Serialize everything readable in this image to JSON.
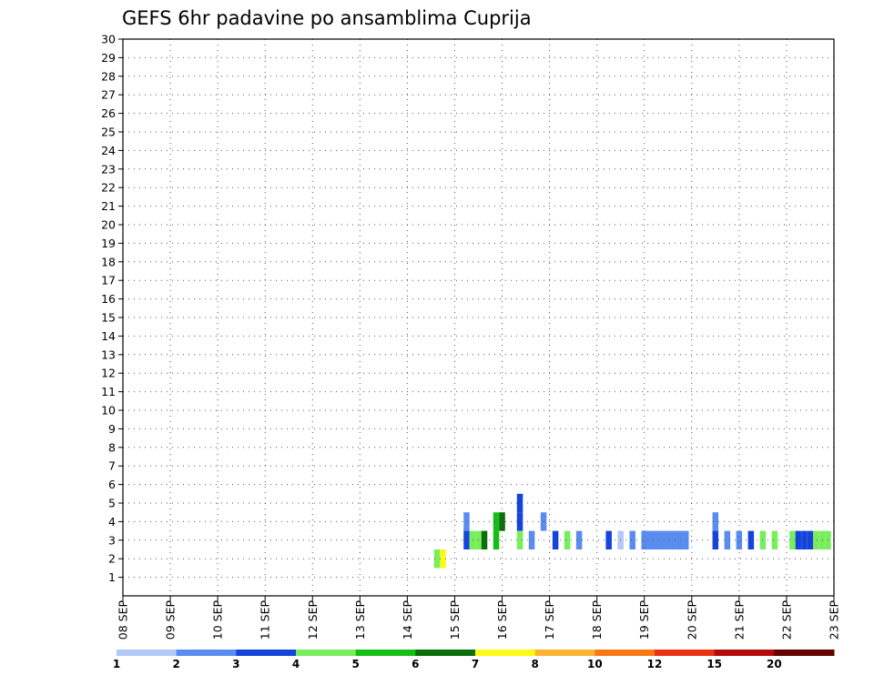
{
  "chart_data": {
    "type": "heatmap",
    "title": "GEFS 6hr padavine po ansamblima Cuprija",
    "xlabel": "",
    "ylabel": "",
    "x_ticks": [
      "08 SEP",
      "09 SEP",
      "10 SEP",
      "11 SEP",
      "12 SEP",
      "13 SEP",
      "14 SEP",
      "15 SEP",
      "16 SEP",
      "17 SEP",
      "18 SEP",
      "19 SEP",
      "20 SEP",
      "21 SEP",
      "22 SEP",
      "23 SEP"
    ],
    "y_ticks": [
      "1",
      "2",
      "3",
      "4",
      "5",
      "6",
      "7",
      "8",
      "9",
      "10",
      "11",
      "12",
      "13",
      "14",
      "15",
      "16",
      "17",
      "18",
      "19",
      "20",
      "21",
      "22",
      "23",
      "24",
      "25",
      "26",
      "27",
      "28",
      "29",
      "30"
    ],
    "xlim": [
      0,
      120
    ],
    "ylim": [
      0,
      30
    ],
    "grid": true,
    "legend": "bottom",
    "colorbar": {
      "labels": [
        "1",
        "2",
        "3",
        "4",
        "5",
        "6",
        "7",
        "8",
        "10",
        "12",
        "15",
        "20"
      ],
      "colors": [
        "#b4c8f8",
        "#5a8cf0",
        "#1444dc",
        "#78ee5c",
        "#14be14",
        "#0a6e0a",
        "#fafa14",
        "#fab432",
        "#fa7814",
        "#e63212",
        "#b40a0a",
        "#640000"
      ]
    },
    "cells": [
      {
        "x": 54,
        "y": 2,
        "c": 6
      },
      {
        "x": 53,
        "y": 2,
        "c": 3
      },
      {
        "x": 58,
        "y": 4,
        "c": 1
      },
      {
        "x": 58,
        "y": 3,
        "c": 2
      },
      {
        "x": 59,
        "y": 3,
        "c": 3
      },
      {
        "x": 60,
        "y": 3,
        "c": 3
      },
      {
        "x": 61,
        "y": 3,
        "c": 5
      },
      {
        "x": 63,
        "y": 3,
        "c": 4
      },
      {
        "x": 63,
        "y": 4,
        "c": 4
      },
      {
        "x": 64,
        "y": 4,
        "c": 5
      },
      {
        "x": 67,
        "y": 4,
        "c": 2
      },
      {
        "x": 67,
        "y": 3,
        "c": 3
      },
      {
        "x": 67,
        "y": 5,
        "c": 2
      },
      {
        "x": 69,
        "y": 3,
        "c": 1
      },
      {
        "x": 71,
        "y": 4,
        "c": 1
      },
      {
        "x": 73,
        "y": 3,
        "c": 2
      },
      {
        "x": 75,
        "y": 3,
        "c": 3
      },
      {
        "x": 77,
        "y": 3,
        "c": 1
      },
      {
        "x": 82,
        "y": 3,
        "c": 2
      },
      {
        "x": 84,
        "y": 3,
        "c": 0
      },
      {
        "x": 86,
        "y": 3,
        "c": 1
      },
      {
        "x": 88,
        "y": 3,
        "c": 1
      },
      {
        "x": 89,
        "y": 3,
        "c": 1
      },
      {
        "x": 90,
        "y": 3,
        "c": 1
      },
      {
        "x": 91,
        "y": 3,
        "c": 1
      },
      {
        "x": 92,
        "y": 3,
        "c": 1
      },
      {
        "x": 93,
        "y": 3,
        "c": 1
      },
      {
        "x": 94,
        "y": 3,
        "c": 1
      },
      {
        "x": 95,
        "y": 3,
        "c": 1
      },
      {
        "x": 100,
        "y": 4,
        "c": 1
      },
      {
        "x": 100,
        "y": 3,
        "c": 2
      },
      {
        "x": 102,
        "y": 3,
        "c": 1
      },
      {
        "x": 104,
        "y": 3,
        "c": 1
      },
      {
        "x": 106,
        "y": 3,
        "c": 2
      },
      {
        "x": 108,
        "y": 3,
        "c": 3
      },
      {
        "x": 110,
        "y": 3,
        "c": 3
      },
      {
        "x": 113,
        "y": 3,
        "c": 3
      },
      {
        "x": 114,
        "y": 3,
        "c": 2
      },
      {
        "x": 115,
        "y": 3,
        "c": 2
      },
      {
        "x": 116,
        "y": 3,
        "c": 2
      },
      {
        "x": 117,
        "y": 3,
        "c": 3
      },
      {
        "x": 118,
        "y": 3,
        "c": 3
      },
      {
        "x": 119,
        "y": 3,
        "c": 3
      }
    ]
  }
}
